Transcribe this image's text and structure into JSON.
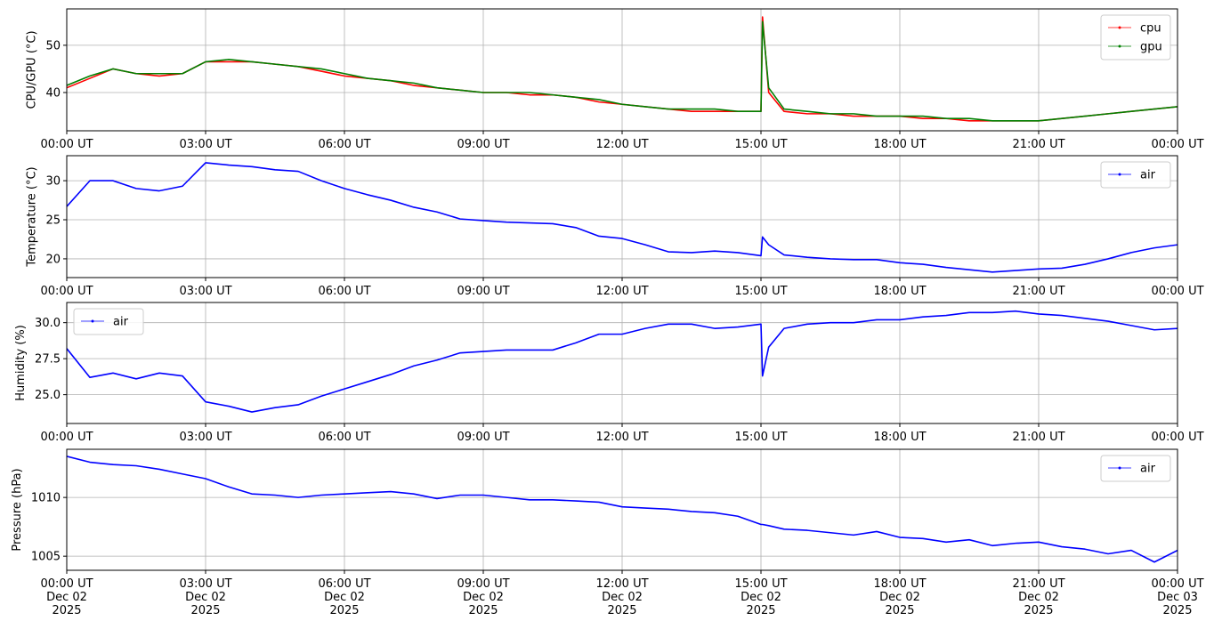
{
  "chart_data": [
    {
      "type": "line",
      "ylabel": "CPU/GPU (°C)",
      "grid": true,
      "legend": "upper right",
      "xlim": [
        "2025-12-02T00:00",
        "2025-12-03T00:00"
      ],
      "xticks": [
        {
          "value": "2025-12-02T00:00",
          "label": "00:00 UT"
        },
        {
          "value": "2025-12-02T03:00",
          "label": "03:00 UT"
        },
        {
          "value": "2025-12-02T06:00",
          "label": "06:00 UT"
        },
        {
          "value": "2025-12-02T09:00",
          "label": "09:00 UT"
        },
        {
          "value": "2025-12-02T12:00",
          "label": "12:00 UT"
        },
        {
          "value": "2025-12-02T15:00",
          "label": "15:00 UT"
        },
        {
          "value": "2025-12-02T18:00",
          "label": "18:00 UT"
        },
        {
          "value": "2025-12-02T21:00",
          "label": "21:00 UT"
        },
        {
          "value": "2025-12-03T00:00",
          "label": "00:00 UT"
        }
      ],
      "ylim": [
        31.9,
        57.7
      ],
      "yticks": [
        40,
        50
      ],
      "x": [
        "2025-12-02T00:00",
        "2025-12-02T00:30",
        "2025-12-02T01:00",
        "2025-12-02T01:30",
        "2025-12-02T02:00",
        "2025-12-02T02:30",
        "2025-12-02T03:00",
        "2025-12-02T03:30",
        "2025-12-02T04:00",
        "2025-12-02T04:30",
        "2025-12-02T05:00",
        "2025-12-02T05:30",
        "2025-12-02T06:00",
        "2025-12-02T06:30",
        "2025-12-02T07:00",
        "2025-12-02T07:30",
        "2025-12-02T08:00",
        "2025-12-02T08:30",
        "2025-12-02T09:00",
        "2025-12-02T09:30",
        "2025-12-02T10:00",
        "2025-12-02T10:30",
        "2025-12-02T11:00",
        "2025-12-02T11:30",
        "2025-12-02T12:00",
        "2025-12-02T12:30",
        "2025-12-02T13:00",
        "2025-12-02T13:30",
        "2025-12-02T14:00",
        "2025-12-02T14:30",
        "2025-12-02T15:00",
        "2025-12-02T15:02",
        "2025-12-02T15:10",
        "2025-12-02T15:30",
        "2025-12-02T16:00",
        "2025-12-02T16:30",
        "2025-12-02T17:00",
        "2025-12-02T17:30",
        "2025-12-02T18:00",
        "2025-12-02T18:30",
        "2025-12-02T19:00",
        "2025-12-02T19:30",
        "2025-12-02T20:00",
        "2025-12-02T20:30",
        "2025-12-02T21:00",
        "2025-12-02T21:30",
        "2025-12-02T22:00",
        "2025-12-02T22:30",
        "2025-12-02T23:00",
        "2025-12-02T23:30",
        "2025-12-03T00:00"
      ],
      "series": [
        {
          "name": "cpu",
          "color": "#ff0000",
          "values": [
            41,
            43,
            45,
            44,
            43.5,
            44,
            46.5,
            46.5,
            46.5,
            46,
            45.5,
            44.5,
            43.5,
            43,
            42.5,
            41.5,
            41,
            40.5,
            40,
            40,
            39.5,
            39.5,
            39,
            38,
            37.5,
            37,
            36.5,
            36,
            36,
            36,
            36,
            56,
            40,
            36,
            35.5,
            35.5,
            35,
            35,
            35,
            34.5,
            34.5,
            34,
            34,
            34,
            34,
            34.5,
            35,
            35.5,
            36,
            36.5,
            37
          ]
        },
        {
          "name": "gpu",
          "color": "#008000",
          "values": [
            41.5,
            43.5,
            45,
            44,
            44,
            44,
            46.5,
            47,
            46.5,
            46,
            45.5,
            45,
            44,
            43,
            42.5,
            42,
            41,
            40.5,
            40,
            40,
            40,
            39.5,
            39,
            38.5,
            37.5,
            37,
            36.5,
            36.5,
            36.5,
            36,
            36,
            55,
            41,
            36.5,
            36,
            35.5,
            35.5,
            35,
            35,
            35,
            34.5,
            34.5,
            34,
            34,
            34,
            34.5,
            35,
            35.5,
            36,
            36.5,
            37
          ]
        }
      ]
    },
    {
      "type": "line",
      "ylabel": "Temperature (°C)",
      "grid": true,
      "legend": "upper right",
      "xlim": [
        "2025-12-02T00:00",
        "2025-12-03T00:00"
      ],
      "xticks": [
        {
          "value": "2025-12-02T00:00",
          "label": "00:00 UT"
        },
        {
          "value": "2025-12-02T03:00",
          "label": "03:00 UT"
        },
        {
          "value": "2025-12-02T06:00",
          "label": "06:00 UT"
        },
        {
          "value": "2025-12-02T09:00",
          "label": "09:00 UT"
        },
        {
          "value": "2025-12-02T12:00",
          "label": "12:00 UT"
        },
        {
          "value": "2025-12-02T15:00",
          "label": "15:00 UT"
        },
        {
          "value": "2025-12-02T18:00",
          "label": "18:00 UT"
        },
        {
          "value": "2025-12-02T21:00",
          "label": "21:00 UT"
        },
        {
          "value": "2025-12-03T00:00",
          "label": "00:00 UT"
        }
      ],
      "ylim": [
        17.6,
        33.2
      ],
      "yticks": [
        20,
        25,
        30
      ],
      "x": [
        "2025-12-02T00:00",
        "2025-12-02T00:30",
        "2025-12-02T01:00",
        "2025-12-02T01:30",
        "2025-12-02T02:00",
        "2025-12-02T02:30",
        "2025-12-02T03:00",
        "2025-12-02T03:30",
        "2025-12-02T04:00",
        "2025-12-02T04:30",
        "2025-12-02T05:00",
        "2025-12-02T05:30",
        "2025-12-02T06:00",
        "2025-12-02T06:30",
        "2025-12-02T07:00",
        "2025-12-02T07:30",
        "2025-12-02T08:00",
        "2025-12-02T08:30",
        "2025-12-02T09:00",
        "2025-12-02T09:30",
        "2025-12-02T10:00",
        "2025-12-02T10:30",
        "2025-12-02T11:00",
        "2025-12-02T11:30",
        "2025-12-02T12:00",
        "2025-12-02T12:30",
        "2025-12-02T13:00",
        "2025-12-02T13:30",
        "2025-12-02T14:00",
        "2025-12-02T14:30",
        "2025-12-02T15:00",
        "2025-12-02T15:02",
        "2025-12-02T15:10",
        "2025-12-02T15:30",
        "2025-12-02T16:00",
        "2025-12-02T16:30",
        "2025-12-02T17:00",
        "2025-12-02T17:30",
        "2025-12-02T18:00",
        "2025-12-02T18:30",
        "2025-12-02T19:00",
        "2025-12-02T19:30",
        "2025-12-02T20:00",
        "2025-12-02T20:30",
        "2025-12-02T21:00",
        "2025-12-02T21:30",
        "2025-12-02T22:00",
        "2025-12-02T22:30",
        "2025-12-02T23:00",
        "2025-12-02T23:30",
        "2025-12-03T00:00"
      ],
      "series": [
        {
          "name": "air",
          "color": "#0000ff",
          "values": [
            26.7,
            30.0,
            30.0,
            29.0,
            28.7,
            29.3,
            32.3,
            32.0,
            31.8,
            31.4,
            31.2,
            30.0,
            29.0,
            28.2,
            27.5,
            26.6,
            26.0,
            25.1,
            24.9,
            24.7,
            24.6,
            24.5,
            24.0,
            22.9,
            22.6,
            21.8,
            20.9,
            20.8,
            21.0,
            20.8,
            20.4,
            22.8,
            21.8,
            20.5,
            20.2,
            20.0,
            19.9,
            19.9,
            19.5,
            19.3,
            18.9,
            18.6,
            18.3,
            18.5,
            18.7,
            18.8,
            19.3,
            20.0,
            20.8,
            21.4,
            21.8
          ]
        }
      ]
    },
    {
      "type": "line",
      "ylabel": "Humidity (%)",
      "grid": true,
      "legend": "upper left",
      "xlim": [
        "2025-12-02T00:00",
        "2025-12-03T00:00"
      ],
      "xticks": [
        {
          "value": "2025-12-02T00:00",
          "label": "00:00 UT"
        },
        {
          "value": "2025-12-02T03:00",
          "label": "03:00 UT"
        },
        {
          "value": "2025-12-02T06:00",
          "label": "06:00 UT"
        },
        {
          "value": "2025-12-02T09:00",
          "label": "09:00 UT"
        },
        {
          "value": "2025-12-02T12:00",
          "label": "12:00 UT"
        },
        {
          "value": "2025-12-02T15:00",
          "label": "15:00 UT"
        },
        {
          "value": "2025-12-02T18:00",
          "label": "18:00 UT"
        },
        {
          "value": "2025-12-02T21:00",
          "label": "21:00 UT"
        },
        {
          "value": "2025-12-03T00:00",
          "label": "00:00 UT"
        }
      ],
      "ylim": [
        23.0,
        31.4
      ],
      "yticks": [
        {
          "value": 25,
          "label": "25.0"
        },
        27.5,
        {
          "value": 30,
          "label": "30.0"
        }
      ],
      "x": [
        "2025-12-02T00:00",
        "2025-12-02T00:30",
        "2025-12-02T01:00",
        "2025-12-02T01:30",
        "2025-12-02T02:00",
        "2025-12-02T02:30",
        "2025-12-02T03:00",
        "2025-12-02T03:30",
        "2025-12-02T04:00",
        "2025-12-02T04:30",
        "2025-12-02T05:00",
        "2025-12-02T05:30",
        "2025-12-02T06:00",
        "2025-12-02T06:30",
        "2025-12-02T07:00",
        "2025-12-02T07:30",
        "2025-12-02T08:00",
        "2025-12-02T08:30",
        "2025-12-02T09:00",
        "2025-12-02T09:30",
        "2025-12-02T10:00",
        "2025-12-02T10:30",
        "2025-12-02T11:00",
        "2025-12-02T11:30",
        "2025-12-02T12:00",
        "2025-12-02T12:30",
        "2025-12-02T13:00",
        "2025-12-02T13:30",
        "2025-12-02T14:00",
        "2025-12-02T14:30",
        "2025-12-02T15:00",
        "2025-12-02T15:02",
        "2025-12-02T15:10",
        "2025-12-02T15:30",
        "2025-12-02T16:00",
        "2025-12-02T16:30",
        "2025-12-02T17:00",
        "2025-12-02T17:30",
        "2025-12-02T18:00",
        "2025-12-02T18:30",
        "2025-12-02T19:00",
        "2025-12-02T19:30",
        "2025-12-02T20:00",
        "2025-12-02T20:30",
        "2025-12-02T21:00",
        "2025-12-02T21:30",
        "2025-12-02T22:00",
        "2025-12-02T22:30",
        "2025-12-02T23:00",
        "2025-12-02T23:30",
        "2025-12-03T00:00"
      ],
      "series": [
        {
          "name": "air",
          "color": "#0000ff",
          "values": [
            28.2,
            26.2,
            26.5,
            26.1,
            26.5,
            26.3,
            24.5,
            24.2,
            23.8,
            24.1,
            24.3,
            24.9,
            25.4,
            25.9,
            26.4,
            27.0,
            27.4,
            27.9,
            28.0,
            28.1,
            28.1,
            28.1,
            28.6,
            29.2,
            29.2,
            29.6,
            29.9,
            29.9,
            29.6,
            29.7,
            29.9,
            26.3,
            28.3,
            29.6,
            29.9,
            30.0,
            30.0,
            30.2,
            30.2,
            30.4,
            30.5,
            30.7,
            30.7,
            30.8,
            30.6,
            30.5,
            30.3,
            30.1,
            29.8,
            29.5,
            29.6
          ]
        }
      ]
    },
    {
      "type": "line",
      "ylabel": "Pressure (hPa)",
      "grid": true,
      "legend": "upper right",
      "xlim": [
        "2025-12-02T00:00",
        "2025-12-03T00:00"
      ],
      "xticks": [
        {
          "value": "2025-12-02T00:00",
          "label": "00:00 UT\nDec 02\n2025"
        },
        {
          "value": "2025-12-02T03:00",
          "label": "03:00 UT\nDec 02\n2025"
        },
        {
          "value": "2025-12-02T06:00",
          "label": "06:00 UT\nDec 02\n2025"
        },
        {
          "value": "2025-12-02T09:00",
          "label": "09:00 UT\nDec 02\n2025"
        },
        {
          "value": "2025-12-02T12:00",
          "label": "12:00 UT\nDec 02\n2025"
        },
        {
          "value": "2025-12-02T15:00",
          "label": "15:00 UT\nDec 02\n2025"
        },
        {
          "value": "2025-12-02T18:00",
          "label": "18:00 UT\nDec 02\n2025"
        },
        {
          "value": "2025-12-02T21:00",
          "label": "21:00 UT\nDec 02\n2025"
        },
        {
          "value": "2025-12-03T00:00",
          "label": "00:00 UT\nDec 03\n2025"
        }
      ],
      "ylim": [
        1003.8,
        1014.1
      ],
      "yticks": [
        1005,
        1010
      ],
      "x": [
        "2025-12-02T00:00",
        "2025-12-02T00:30",
        "2025-12-02T01:00",
        "2025-12-02T01:30",
        "2025-12-02T02:00",
        "2025-12-02T02:30",
        "2025-12-02T03:00",
        "2025-12-02T03:30",
        "2025-12-02T04:00",
        "2025-12-02T04:30",
        "2025-12-02T05:00",
        "2025-12-02T05:30",
        "2025-12-02T06:00",
        "2025-12-02T06:30",
        "2025-12-02T07:00",
        "2025-12-02T07:30",
        "2025-12-02T08:00",
        "2025-12-02T08:30",
        "2025-12-02T09:00",
        "2025-12-02T09:30",
        "2025-12-02T10:00",
        "2025-12-02T10:30",
        "2025-12-02T11:00",
        "2025-12-02T11:30",
        "2025-12-02T12:00",
        "2025-12-02T12:30",
        "2025-12-02T13:00",
        "2025-12-02T13:30",
        "2025-12-02T14:00",
        "2025-12-02T14:30",
        "2025-12-02T15:00",
        "2025-12-02T15:02",
        "2025-12-02T15:10",
        "2025-12-02T15:30",
        "2025-12-02T16:00",
        "2025-12-02T16:30",
        "2025-12-02T17:00",
        "2025-12-02T17:30",
        "2025-12-02T18:00",
        "2025-12-02T18:30",
        "2025-12-02T19:00",
        "2025-12-02T19:30",
        "2025-12-02T20:00",
        "2025-12-02T20:30",
        "2025-12-02T21:00",
        "2025-12-02T21:30",
        "2025-12-02T22:00",
        "2025-12-02T22:30",
        "2025-12-02T23:00",
        "2025-12-02T23:30",
        "2025-12-03T00:00"
      ],
      "series": [
        {
          "name": "air",
          "color": "#0000ff",
          "values": [
            1013.5,
            1013.0,
            1012.8,
            1012.7,
            1012.4,
            1012.0,
            1011.6,
            1010.9,
            1010.3,
            1010.2,
            1010.0,
            1010.2,
            1010.3,
            1010.4,
            1010.5,
            1010.3,
            1009.9,
            1010.2,
            1010.2,
            1010.0,
            1009.8,
            1009.8,
            1009.7,
            1009.6,
            1009.2,
            1009.1,
            1009.0,
            1008.8,
            1008.7,
            1008.4,
            1007.7,
            1007.7,
            1007.6,
            1007.3,
            1007.2,
            1007.0,
            1006.8,
            1007.1,
            1006.6,
            1006.5,
            1006.2,
            1006.4,
            1005.9,
            1006.1,
            1006.2,
            1005.8,
            1005.6,
            1005.2,
            1005.5,
            1004.5,
            1005.5
          ]
        }
      ]
    }
  ]
}
